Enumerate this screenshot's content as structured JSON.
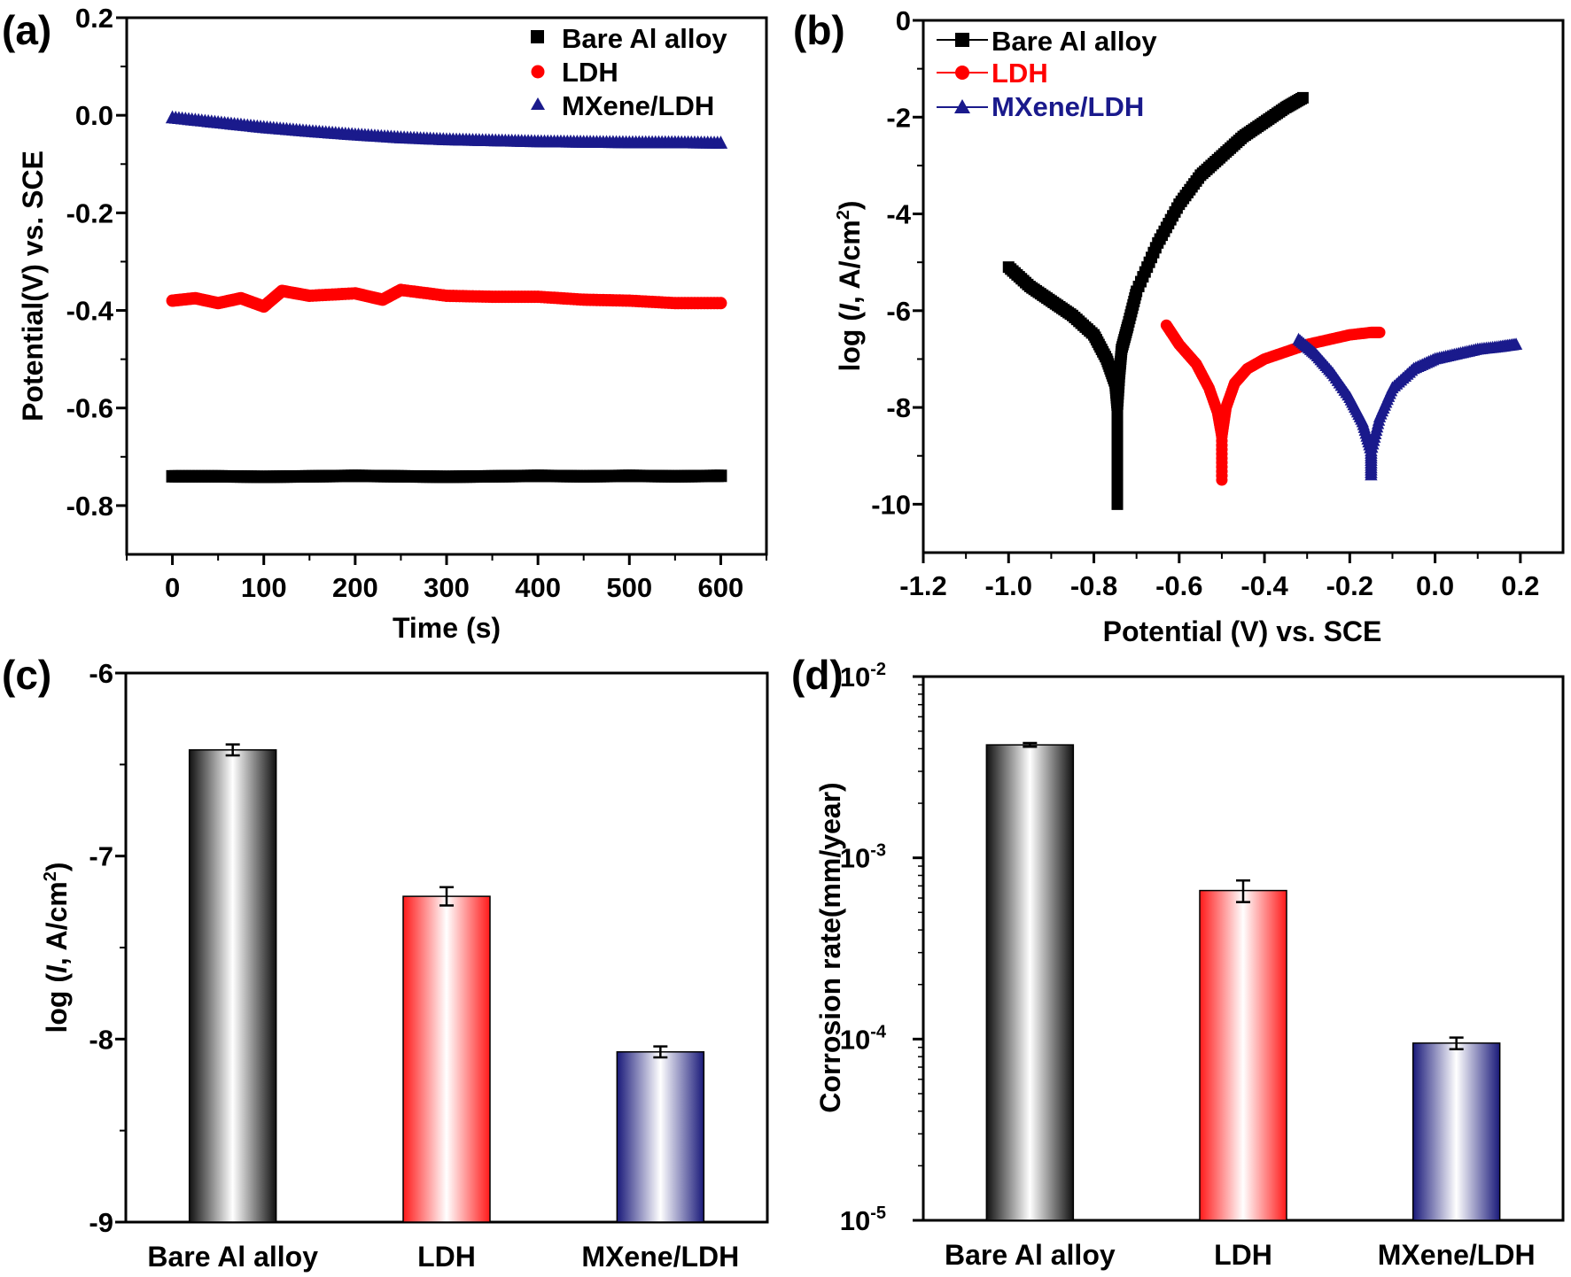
{
  "figure": {
    "panels": [
      {
        "id": "a",
        "letter": "(a)"
      },
      {
        "id": "b",
        "letter": "(b)"
      },
      {
        "id": "c",
        "letter": "(c)"
      },
      {
        "id": "d",
        "letter": "(d)"
      }
    ]
  },
  "chart_data": [
    {
      "panel": "(a)",
      "type": "scatter",
      "xlabel": "Time (s)",
      "ylabel": "Potential(V) vs. SCE",
      "xlim": [
        -50,
        650
      ],
      "ylim": [
        -0.9,
        0.2
      ],
      "xticks": [
        0,
        100,
        200,
        300,
        400,
        500,
        600
      ],
      "yticks": [
        0.2,
        0.0,
        -0.2,
        -0.4,
        -0.6,
        -0.8
      ],
      "ytick_labels": [
        "0.2",
        "0.0",
        "-0.2",
        "-0.4",
        "-0.6",
        "-0.8"
      ],
      "legend_position": "top-right",
      "series": [
        {
          "name": "Bare Al alloy",
          "color": "#000000",
          "marker": "square",
          "x": [
            0,
            50,
            100,
            150,
            200,
            250,
            300,
            350,
            400,
            450,
            500,
            550,
            600
          ],
          "y": [
            -0.74,
            -0.74,
            -0.741,
            -0.74,
            -0.739,
            -0.74,
            -0.741,
            -0.74,
            -0.739,
            -0.74,
            -0.739,
            -0.74,
            -0.739
          ]
        },
        {
          "name": "LDH",
          "color": "#ff0000",
          "marker": "circle",
          "x": [
            0,
            25,
            50,
            75,
            100,
            120,
            150,
            200,
            230,
            250,
            300,
            350,
            400,
            450,
            500,
            550,
            600
          ],
          "y": [
            -0.38,
            -0.375,
            -0.385,
            -0.375,
            -0.392,
            -0.36,
            -0.37,
            -0.365,
            -0.378,
            -0.358,
            -0.37,
            -0.372,
            -0.372,
            -0.378,
            -0.38,
            -0.385,
            -0.385
          ]
        },
        {
          "name": "MXene/LDH",
          "color": "#1a1a8c",
          "marker": "triangle",
          "x": [
            0,
            50,
            100,
            150,
            200,
            250,
            300,
            350,
            400,
            450,
            500,
            550,
            600
          ],
          "y": [
            -0.005,
            -0.015,
            -0.025,
            -0.033,
            -0.04,
            -0.046,
            -0.05,
            -0.052,
            -0.054,
            -0.055,
            -0.056,
            -0.056,
            -0.057
          ]
        }
      ]
    },
    {
      "panel": "(b)",
      "type": "line",
      "xlabel": "Potential (V) vs. SCE",
      "ylabel": "log (I, A/cm2)",
      "xlim": [
        -1.2,
        0.3
      ],
      "ylim": [
        -11,
        0
      ],
      "xticks": [
        -1.2,
        -1.0,
        -0.8,
        -0.6,
        -0.4,
        -0.2,
        0.0,
        0.2
      ],
      "xtick_labels": [
        "-1.2",
        "-1.0",
        "-0.8",
        "-0.6",
        "-0.4",
        "-0.2",
        "0.0",
        "0.2"
      ],
      "yticks": [
        0,
        -2,
        -4,
        -6,
        -8,
        -10
      ],
      "legend_position": "top-left",
      "series": [
        {
          "name": "Bare Al alloy",
          "color": "#000000",
          "marker": "square",
          "x": [
            -1.0,
            -0.95,
            -0.9,
            -0.85,
            -0.8,
            -0.77,
            -0.75,
            -0.745,
            -0.745,
            -0.745,
            -0.74,
            -0.735,
            -0.72,
            -0.7,
            -0.65,
            -0.6,
            -0.55,
            -0.5,
            -0.45,
            -0.4,
            -0.35,
            -0.31
          ],
          "y": [
            -5.1,
            -5.5,
            -5.8,
            -6.1,
            -6.5,
            -7.0,
            -7.5,
            -8.0,
            -10.0,
            -8.0,
            -7.3,
            -6.8,
            -6.3,
            -5.6,
            -4.6,
            -3.8,
            -3.2,
            -2.8,
            -2.4,
            -2.1,
            -1.8,
            -1.6
          ]
        },
        {
          "name": "LDH",
          "color": "#ff0000",
          "marker": "circle",
          "x": [
            -0.63,
            -0.6,
            -0.56,
            -0.53,
            -0.51,
            -0.5,
            -0.5,
            -0.5,
            -0.49,
            -0.47,
            -0.44,
            -0.4,
            -0.35,
            -0.3,
            -0.25,
            -0.2,
            -0.15,
            -0.13
          ],
          "y": [
            -6.3,
            -6.7,
            -7.1,
            -7.6,
            -8.1,
            -8.6,
            -9.5,
            -8.6,
            -8.0,
            -7.5,
            -7.2,
            -7.0,
            -6.85,
            -6.7,
            -6.6,
            -6.5,
            -6.45,
            -6.45
          ]
        },
        {
          "name": "MXene/LDH",
          "color": "#1a1a8c",
          "marker": "triangle",
          "x": [
            -0.32,
            -0.28,
            -0.24,
            -0.2,
            -0.17,
            -0.15,
            -0.15,
            -0.15,
            -0.13,
            -0.1,
            -0.05,
            0.0,
            0.05,
            0.1,
            0.15,
            0.19
          ],
          "y": [
            -6.6,
            -6.9,
            -7.3,
            -7.8,
            -8.3,
            -8.9,
            -9.4,
            -8.9,
            -8.2,
            -7.6,
            -7.2,
            -7.0,
            -6.9,
            -6.8,
            -6.75,
            -6.7
          ]
        }
      ]
    },
    {
      "panel": "(c)",
      "type": "bar",
      "ylabel": "log (I, A/cm2)",
      "ylim": [
        -9,
        -6
      ],
      "yticks": [
        -6,
        -7,
        -8,
        -9
      ],
      "categories": [
        "Bare Al alloy",
        "LDH",
        "MXene/LDH"
      ],
      "values": [
        -6.42,
        -7.22,
        -8.07
      ],
      "errors": [
        0.03,
        0.05,
        0.03
      ],
      "colors": [
        "#000000",
        "#ff0000",
        "#1a1a8c"
      ]
    },
    {
      "panel": "(d)",
      "type": "bar",
      "ylabel": "Corrosion rate(mm/year)",
      "yscale": "log",
      "ylim": [
        1e-05,
        0.01
      ],
      "yticks": [
        0.01,
        0.001,
        0.0001,
        1e-05
      ],
      "ytick_exponents": [
        "-2",
        "-3",
        "-4",
        "-5"
      ],
      "categories": [
        "Bare Al alloy",
        "LDH",
        "MXene/LDH"
      ],
      "values": [
        0.0042,
        0.00066,
        9.5e-05
      ],
      "errors": [
        0.0001,
        9e-05,
        7e-06
      ],
      "colors": [
        "#000000",
        "#ff0000",
        "#1a1a8c"
      ]
    }
  ]
}
